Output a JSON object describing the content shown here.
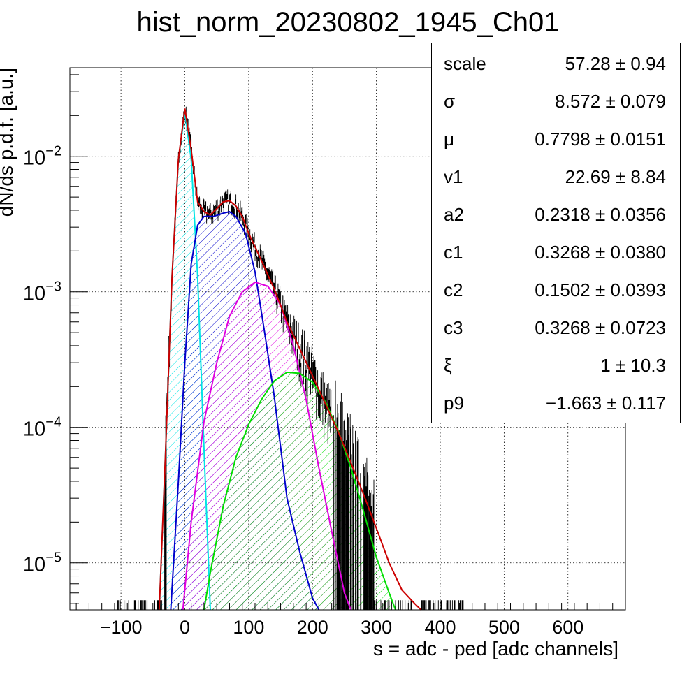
{
  "chart_data": {
    "type": "line",
    "title": "hist_norm_20230802_1945_Ch01",
    "xlabel": "s = adc - ped [adc channels]",
    "ylabel": "dN/ds p.d.f. [a.u.]",
    "xlim": [
      -180,
      690
    ],
    "ylim": [
      4.5e-06,
      0.045
    ],
    "y_scale": "log",
    "grid": true,
    "x_ticks": [
      -100,
      0,
      100,
      200,
      300,
      400,
      500,
      600
    ],
    "x_tick_labels": [
      "−100",
      "0",
      "100",
      "200",
      "300",
      "400",
      "500",
      "600"
    ],
    "y_ticks": [
      1e-05,
      0.0001,
      0.001,
      0.01
    ],
    "y_tick_labels": [
      {
        "base": "10",
        "exp": "−5"
      },
      {
        "base": "10",
        "exp": "−4"
      },
      {
        "base": "10",
        "exp": "−3"
      },
      {
        "base": "10",
        "exp": "−2"
      }
    ],
    "series": [
      {
        "color": "#00e5e5",
        "hatch": true,
        "x": [
          -40,
          -30,
          -20,
          -10,
          0,
          10,
          20,
          30,
          40
        ],
        "y": [
          4.5e-06,
          7e-05,
          0.0013,
          0.0095,
          0.021,
          0.0095,
          0.0013,
          7e-05,
          4.5e-06
        ]
      },
      {
        "color": "#0000cc",
        "hatch": true,
        "x": [
          -22,
          -10,
          0,
          10,
          20,
          30,
          45,
          60,
          70,
          80,
          95,
          110,
          125,
          140,
          160,
          180,
          200,
          210
        ],
        "y": [
          4.5e-06,
          4e-05,
          0.0003,
          0.0016,
          0.0031,
          0.0036,
          0.0036,
          0.0038,
          0.0039,
          0.0036,
          0.0027,
          0.0014,
          0.0005,
          0.00017,
          3e-05,
          1.2e-05,
          5.5e-06,
          4.5e-06
        ]
      },
      {
        "color": "#e000e0",
        "hatch": true,
        "x": [
          -3,
          10,
          30,
          50,
          70,
          90,
          110,
          130,
          150,
          170,
          190,
          210,
          230,
          250,
          260
        ],
        "y": [
          4.5e-06,
          2e-05,
          0.00011,
          0.0003,
          0.00066,
          0.001,
          0.00118,
          0.0011,
          0.0008,
          0.0004,
          0.00016,
          5e-05,
          1.7e-05,
          6e-06,
          4.5e-06
        ]
      },
      {
        "color": "#00dd00",
        "hatch": true,
        "x": [
          30,
          40,
          60,
          80,
          100,
          120,
          140,
          160,
          180,
          200,
          220,
          240,
          260,
          280,
          300,
          320,
          330
        ],
        "y": [
          4.5e-06,
          8.5e-06,
          2.6e-05,
          6e-05,
          0.000105,
          0.00016,
          0.00022,
          0.000255,
          0.00025,
          0.000215,
          0.000155,
          9.5e-05,
          5e-05,
          2.4e-05,
          1.1e-05,
          6e-06,
          4.5e-06
        ]
      },
      {
        "color": "#cc0000",
        "hatch": false,
        "x": [
          -40,
          -30,
          -20,
          -10,
          0,
          10,
          20,
          30,
          40,
          50,
          60,
          70,
          80,
          90,
          100,
          120,
          140,
          160,
          180,
          200,
          220,
          240,
          260,
          280,
          300,
          320,
          340,
          360,
          370
        ],
        "y": [
          4.5e-06,
          7e-05,
          0.0013,
          0.0095,
          0.0225,
          0.0112,
          0.0046,
          0.0039,
          0.0037,
          0.0041,
          0.0046,
          0.0047,
          0.0043,
          0.0036,
          0.0027,
          0.0017,
          0.00105,
          0.0006,
          0.00038,
          0.00024,
          0.00015,
          9.3e-05,
          5.5e-05,
          3.2e-05,
          1.8e-05,
          1e-05,
          6.3e-06,
          5e-06,
          4.5e-06
        ]
      }
    ],
    "histogram": {
      "color": "#000000",
      "bin_width": 1,
      "noise_floor": 5.3e-06,
      "range": [
        -105,
        440
      ]
    }
  },
  "stats": [
    {
      "name": "scale",
      "value": "57.28 ± 0.94"
    },
    {
      "name": "σ",
      "value": "8.572 ± 0.079"
    },
    {
      "name": "μ",
      "value": "0.7798 ± 0.0151"
    },
    {
      "name": "v1",
      "value": "22.69 ± 8.84"
    },
    {
      "name": "a2",
      "value": "0.2318 ± 0.0356"
    },
    {
      "name": "c1",
      "value": "0.3268 ± 0.0380"
    },
    {
      "name": "c2",
      "value": "0.1502 ± 0.0393"
    },
    {
      "name": "c3",
      "value": "0.3268 ± 0.0723"
    },
    {
      "name": "ξ",
      "value": "1 ± 10.3"
    },
    {
      "name": "p9",
      "value": "−1.663 ± 0.117"
    }
  ]
}
